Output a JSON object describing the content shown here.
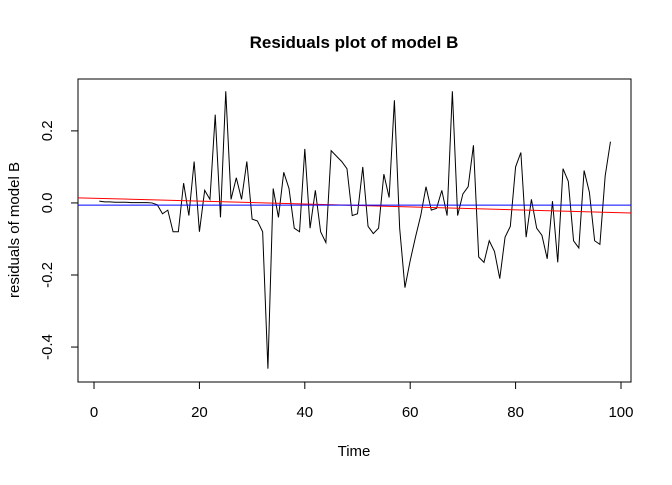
{
  "chart_data": {
    "type": "line",
    "title": "Residuals plot of model B",
    "x_label": "Time",
    "y_label": "residuals of model B",
    "x": [
      1,
      2,
      3,
      4,
      5,
      6,
      7,
      8,
      9,
      10,
      11,
      12,
      13,
      14,
      15,
      16,
      17,
      18,
      19,
      20,
      21,
      22,
      23,
      24,
      25,
      26,
      27,
      28,
      29,
      30,
      31,
      32,
      33,
      34,
      35,
      36,
      37,
      38,
      39,
      40,
      41,
      42,
      43,
      44,
      45,
      46,
      47,
      48,
      49,
      50,
      51,
      52,
      53,
      54,
      55,
      56,
      57,
      58,
      59,
      60,
      61,
      62,
      63,
      64,
      65,
      66,
      67,
      68,
      69,
      70,
      71,
      72,
      73,
      74,
      75,
      76,
      77,
      78,
      79,
      80,
      81,
      82,
      83,
      84,
      85,
      86,
      87,
      88,
      89,
      90,
      91,
      92,
      93,
      94,
      95,
      96,
      97,
      98
    ],
    "series": [
      {
        "color": "#000000",
        "values": [
          0.005,
          0.003,
          0.003,
          0.002,
          0.002,
          0.002,
          0.001,
          0.001,
          0.001,
          0.001,
          0.0,
          -0.005,
          -0.03,
          -0.02,
          -0.08,
          -0.08,
          0.055,
          -0.035,
          0.115,
          -0.08,
          0.035,
          0.01,
          0.245,
          -0.04,
          0.31,
          0.01,
          0.07,
          0.01,
          0.115,
          -0.045,
          -0.05,
          -0.08,
          -0.46,
          0.04,
          -0.04,
          0.085,
          0.04,
          -0.07,
          -0.08,
          0.15,
          -0.07,
          0.035,
          -0.08,
          -0.11,
          0.145,
          0.13,
          0.115,
          0.095,
          -0.035,
          -0.03,
          0.1,
          -0.065,
          -0.085,
          -0.07,
          0.08,
          0.015,
          0.285,
          -0.07,
          -0.235,
          -0.16,
          -0.095,
          -0.035,
          0.045,
          -0.02,
          -0.015,
          0.035,
          -0.035,
          0.31,
          -0.035,
          0.025,
          0.045,
          0.16,
          -0.15,
          -0.165,
          -0.105,
          -0.135,
          -0.21,
          -0.095,
          -0.065,
          0.1,
          0.14,
          -0.095,
          0.01,
          -0.07,
          -0.09,
          -0.155,
          0.005,
          -0.165,
          0.095,
          0.06,
          -0.105,
          -0.125,
          0.09,
          0.03,
          -0.105,
          -0.115,
          0.075,
          0.17
        ]
      }
    ],
    "ablines": [
      {
        "color": "#ff0000",
        "intercept": 0.013,
        "slope": -0.0004
      },
      {
        "color": "#0000ff",
        "intercept": -0.006,
        "slope": 0
      }
    ],
    "xlim": [
      -3.04,
      101.9
    ],
    "ylim": [
      -0.497,
      0.344
    ],
    "xticks": [
      0,
      20,
      40,
      60,
      80,
      100
    ],
    "yticks": [
      -0.4,
      -0.2,
      {
        "value": 0,
        "label": "0.0"
      },
      0.2
    ]
  }
}
